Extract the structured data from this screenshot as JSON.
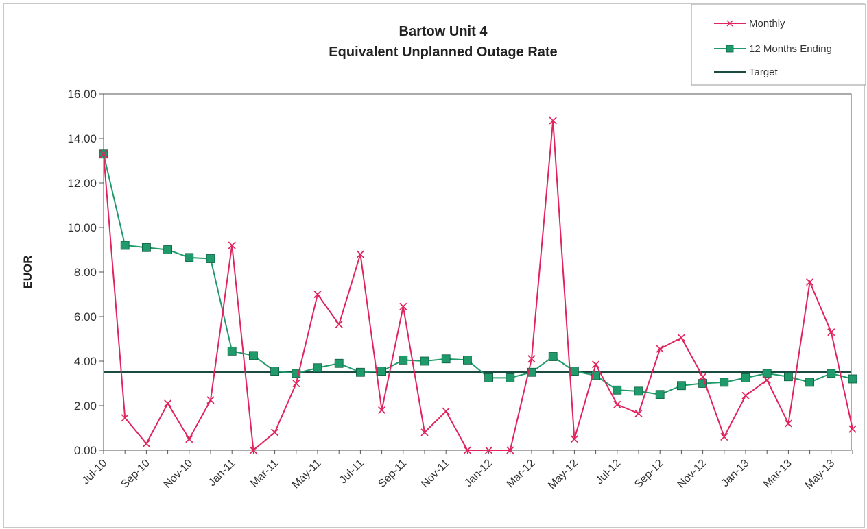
{
  "chart_data": {
    "type": "line",
    "title": "Bartow Unit 4",
    "subtitle": "Equivalent Unplanned Outage Rate",
    "ylabel": "EUOR",
    "xlabel": "",
    "ylim": [
      0,
      16
    ],
    "y_ticks": [
      "0.00",
      "2.00",
      "4.00",
      "6.00",
      "8.00",
      "10.00",
      "12.00",
      "14.00",
      "16.00"
    ],
    "x": [
      "Jul-10",
      "Aug-10",
      "Sep-10",
      "Oct-10",
      "Nov-10",
      "Dec-10",
      "Jan-11",
      "Feb-11",
      "Mar-11",
      "Apr-11",
      "May-11",
      "Jun-11",
      "Jul-11",
      "Aug-11",
      "Sep-11",
      "Oct-11",
      "Nov-11",
      "Dec-11",
      "Jan-12",
      "Feb-12",
      "Mar-12",
      "Apr-12",
      "May-12",
      "Jun-12",
      "Jul-12",
      "Aug-12",
      "Sep-12",
      "Oct-12",
      "Nov-12",
      "Dec-12",
      "Jan-13",
      "Feb-13",
      "Mar-13",
      "Apr-13",
      "May-13",
      "Jun-13"
    ],
    "x_tick_labels": [
      "Jul-10",
      "Sep-10",
      "Nov-10",
      "Jan-11",
      "Mar-11",
      "May-11",
      "Jul-11",
      "Sep-11",
      "Nov-11",
      "Jan-12",
      "Mar-12",
      "May-12",
      "Jul-12",
      "Sep-12",
      "Nov-12",
      "Jan-13",
      "Mar-13",
      "May-13"
    ],
    "grid": false,
    "legend_position": "top-right",
    "series": [
      {
        "name": "Monthly",
        "color": "#e0245e",
        "marker": "x",
        "values": [
          13.3,
          1.45,
          0.3,
          2.1,
          0.5,
          2.25,
          9.2,
          0.0,
          0.8,
          3.0,
          7.0,
          5.65,
          8.8,
          1.8,
          6.45,
          0.8,
          1.75,
          0.0,
          0.0,
          0.0,
          4.1,
          14.8,
          0.5,
          3.85,
          2.05,
          1.65,
          4.55,
          5.05,
          3.3,
          0.6,
          2.45,
          3.15,
          1.2,
          7.55,
          5.3,
          0.95
        ]
      },
      {
        "name": "12 Months Ending",
        "color": "#1f9a6a",
        "marker": "square",
        "values": [
          13.3,
          9.2,
          9.1,
          9.0,
          8.65,
          8.6,
          4.45,
          4.25,
          3.55,
          3.45,
          3.7,
          3.9,
          3.5,
          3.55,
          4.05,
          4.0,
          4.1,
          4.05,
          3.25,
          3.25,
          3.5,
          4.2,
          3.55,
          3.35,
          2.7,
          2.65,
          2.5,
          2.9,
          3.0,
          3.05,
          3.25,
          3.45,
          3.3,
          3.05,
          3.45,
          3.2
        ]
      },
      {
        "name": "Target",
        "color": "#1a4a40",
        "marker": "none",
        "constant": 3.5
      }
    ]
  }
}
